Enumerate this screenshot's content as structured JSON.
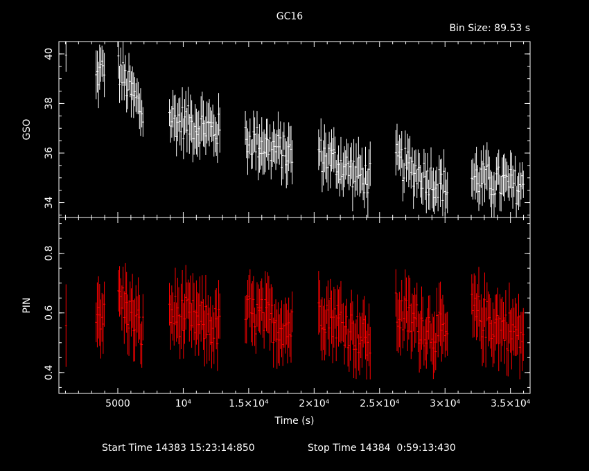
{
  "title": "GC16",
  "bin_size": "Bin Size: 89.53 s",
  "footer": {
    "start_label": "Start Time 14383 15:23:14:850",
    "stop_label": "Stop Time 14384  0:59:13:430"
  },
  "colors": {
    "background": "#000000",
    "gso": "#ffffff",
    "pin": "#ff0000",
    "axes": "#ffffff"
  },
  "chart_data": {
    "type": "scatter",
    "title": "GC16",
    "xlabel": "Time (s)",
    "xlim": [
      500,
      36500
    ],
    "xticks": [
      {
        "value": 5000,
        "label": "5000"
      },
      {
        "value": 10000,
        "label": "10⁴"
      },
      {
        "value": 15000,
        "label": "1.5×10⁴"
      },
      {
        "value": 20000,
        "label": "2×10⁴"
      },
      {
        "value": 25000,
        "label": "2.5×10⁴"
      },
      {
        "value": 30000,
        "label": "3×10⁴"
      },
      {
        "value": 35000,
        "label": "3.5×10⁴"
      }
    ],
    "panels": [
      {
        "name": "GSO",
        "ylabel": "GSO",
        "ylim": [
          33.4,
          40.5
        ],
        "yticks": [
          34,
          36,
          38,
          40
        ],
        "color": "#ffffff",
        "visits": [
          {
            "t_start": 1000,
            "t_end": 1050,
            "start_level": 39.8,
            "end_level": 39.8,
            "noise": 0.5,
            "err": 0.9
          },
          {
            "t_start": 3300,
            "t_end": 4000,
            "start_level": 39.0,
            "end_level": 39.5,
            "noise": 0.6,
            "err": 0.9
          },
          {
            "t_start": 5000,
            "t_end": 7000,
            "start_level": 39.4,
            "end_level": 37.6,
            "noise": 0.7,
            "err": 0.9
          },
          {
            "t_start": 8900,
            "t_end": 12800,
            "start_level": 37.4,
            "end_level": 36.9,
            "noise": 0.7,
            "err": 0.9
          },
          {
            "t_start": 14700,
            "t_end": 18400,
            "start_level": 36.6,
            "end_level": 35.9,
            "noise": 0.7,
            "err": 0.9
          },
          {
            "t_start": 20300,
            "t_end": 24300,
            "start_level": 36.0,
            "end_level": 34.9,
            "noise": 0.7,
            "err": 0.9
          },
          {
            "t_start": 26200,
            "t_end": 30200,
            "start_level": 35.7,
            "end_level": 34.6,
            "noise": 0.7,
            "err": 0.9
          },
          {
            "t_start": 32000,
            "t_end": 36000,
            "start_level": 35.0,
            "end_level": 34.6,
            "noise": 0.7,
            "err": 0.9
          }
        ]
      },
      {
        "name": "PIN",
        "ylabel": "PIN",
        "ylim": [
          0.33,
          0.92
        ],
        "yticks": [
          {
            "value": 0.4,
            "label": "0.4"
          },
          {
            "value": 0.6,
            "label": "0.6"
          },
          {
            "value": 0.8,
            "label": "0.8"
          }
        ],
        "color": "#ff0000",
        "visits": [
          {
            "t_start": 1000,
            "t_end": 1050,
            "start_level": 0.58,
            "end_level": 0.58,
            "noise": 0.08,
            "err": 0.18
          },
          {
            "t_start": 3300,
            "t_end": 4000,
            "start_level": 0.62,
            "end_level": 0.58,
            "noise": 0.06,
            "err": 0.1
          },
          {
            "t_start": 5000,
            "t_end": 7000,
            "start_level": 0.66,
            "end_level": 0.53,
            "noise": 0.07,
            "err": 0.1
          },
          {
            "t_start": 8900,
            "t_end": 12800,
            "start_level": 0.6,
            "end_level": 0.55,
            "noise": 0.07,
            "err": 0.1
          },
          {
            "t_start": 14700,
            "t_end": 18400,
            "start_level": 0.6,
            "end_level": 0.55,
            "noise": 0.07,
            "err": 0.1
          },
          {
            "t_start": 20300,
            "t_end": 24300,
            "start_level": 0.62,
            "end_level": 0.5,
            "noise": 0.07,
            "err": 0.1
          },
          {
            "t_start": 26200,
            "t_end": 30200,
            "start_level": 0.6,
            "end_level": 0.52,
            "noise": 0.07,
            "err": 0.1
          },
          {
            "t_start": 32000,
            "t_end": 36000,
            "start_level": 0.6,
            "end_level": 0.52,
            "noise": 0.07,
            "err": 0.1
          }
        ]
      }
    ]
  }
}
